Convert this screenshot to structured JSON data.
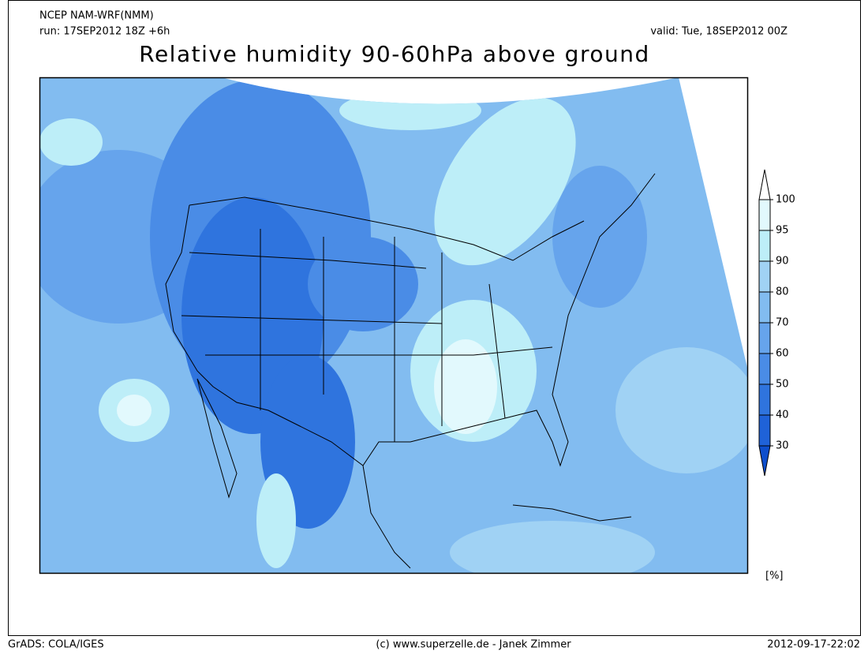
{
  "header": {
    "model": "NCEP NAM-WRF(NMM)",
    "run": "run: 17SEP2012 18Z +6h",
    "valid": "valid: Tue, 18SEP2012 00Z"
  },
  "title": "Relative humidity 90-60hPa above ground",
  "legend": {
    "ticks": [
      100,
      95,
      90,
      80,
      70,
      60,
      50,
      40,
      30
    ],
    "colors": [
      "#ffffff",
      "#e2f9fd",
      "#bdeef8",
      "#a0d2f4",
      "#82bcf0",
      "#66a4ec",
      "#4a8ce6",
      "#2f74de",
      "#1f62d8",
      "#0d4ecc"
    ],
    "unit": "[%]"
  },
  "footer": {
    "left": "GrADS: COLA/IGES",
    "center": "(c) www.superzelle.de - Janek Zimmer",
    "right": "2012-09-17-22:02"
  }
}
